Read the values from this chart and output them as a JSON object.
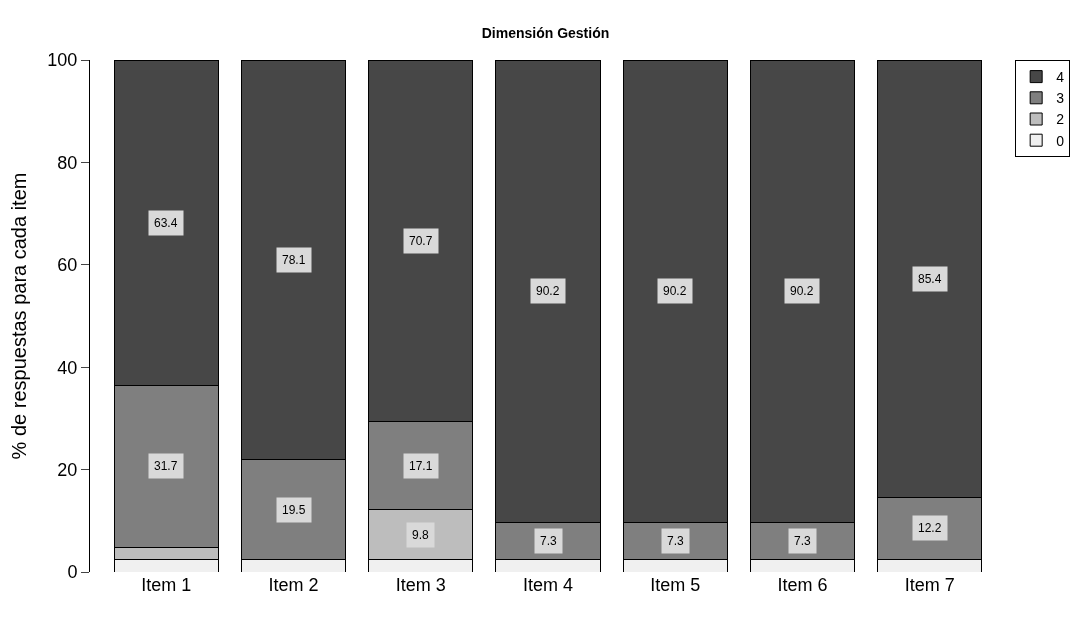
{
  "chart_data": {
    "type": "bar",
    "title": "Dimensión Gestión",
    "ylabel": "% de respuestas para cada item",
    "categories": [
      "Item 1",
      "Item 2",
      "Item 3",
      "Item 4",
      "Item 5",
      "Item 6",
      "Item 7"
    ],
    "stacked": true,
    "ylim": [
      0,
      100
    ],
    "yticks": [
      0,
      20,
      40,
      60,
      80,
      100
    ],
    "legend": "top right",
    "series": [
      {
        "name": "0",
        "color": "#f0f0f0",
        "values": [
          2.4,
          2.4,
          2.4,
          2.4,
          2.4,
          2.4,
          2.4
        ],
        "value_labels": [
          null,
          null,
          null,
          null,
          null,
          null,
          null
        ]
      },
      {
        "name": "2",
        "color": "#bdbdbd",
        "values": [
          2.4,
          0,
          9.8,
          0,
          0,
          0,
          0
        ],
        "value_labels": [
          null,
          null,
          "9.8",
          null,
          null,
          null,
          null
        ]
      },
      {
        "name": "3",
        "color": "#7f7f7f",
        "values": [
          31.7,
          19.5,
          17.1,
          7.3,
          7.3,
          7.3,
          12.2
        ],
        "value_labels": [
          "31.7",
          "19.5",
          "17.1",
          "7.3",
          "7.3",
          "7.3",
          "12.2"
        ]
      },
      {
        "name": "4",
        "color": "#474747",
        "values": [
          63.4,
          78.1,
          70.7,
          90.2,
          90.2,
          90.2,
          85.4
        ],
        "value_labels": [
          "63.4",
          "78.1",
          "70.7",
          "90.2",
          "90.2",
          "90.2",
          "85.4"
        ]
      }
    ]
  }
}
